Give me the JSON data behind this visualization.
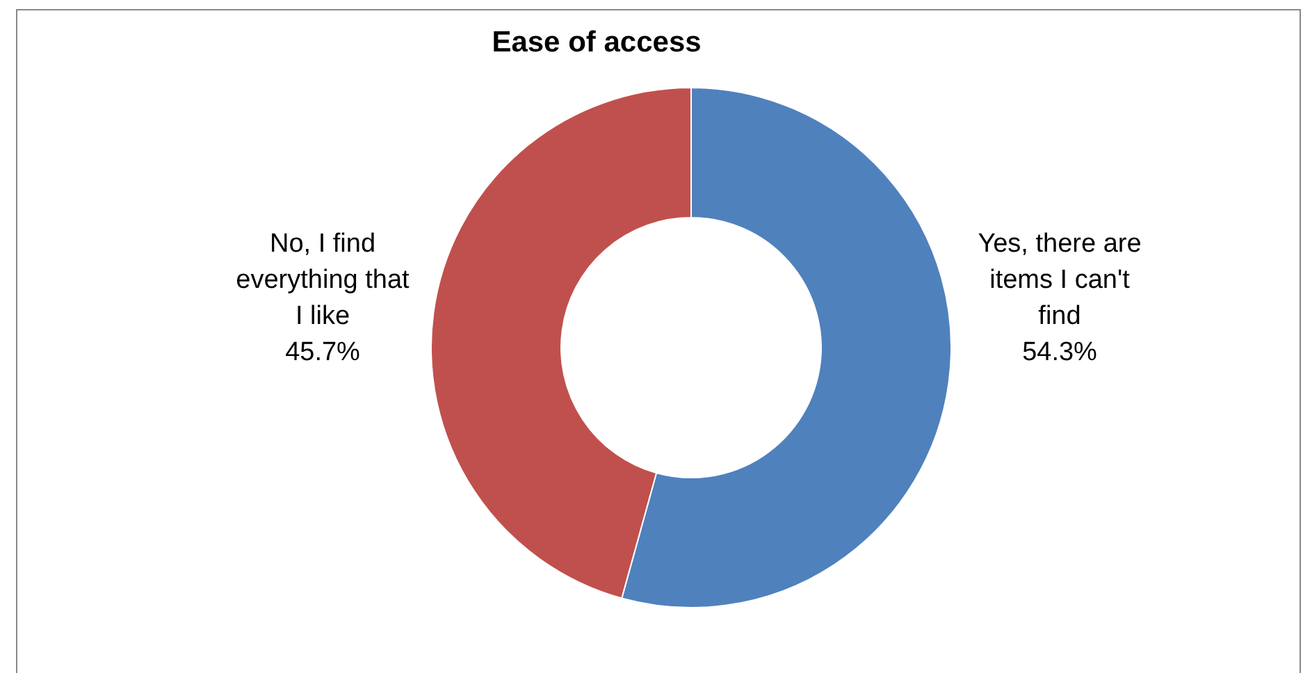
{
  "chart_data": {
    "type": "donut",
    "title": "Ease of access",
    "categories": [
      "Yes, there are items I can't find",
      "No, I find everything that I like"
    ],
    "values": [
      54.3,
      45.7
    ],
    "colors": [
      "#4f81bd",
      "#c0504d"
    ],
    "value_labels": [
      "54.3%",
      "45.7%"
    ]
  }
}
